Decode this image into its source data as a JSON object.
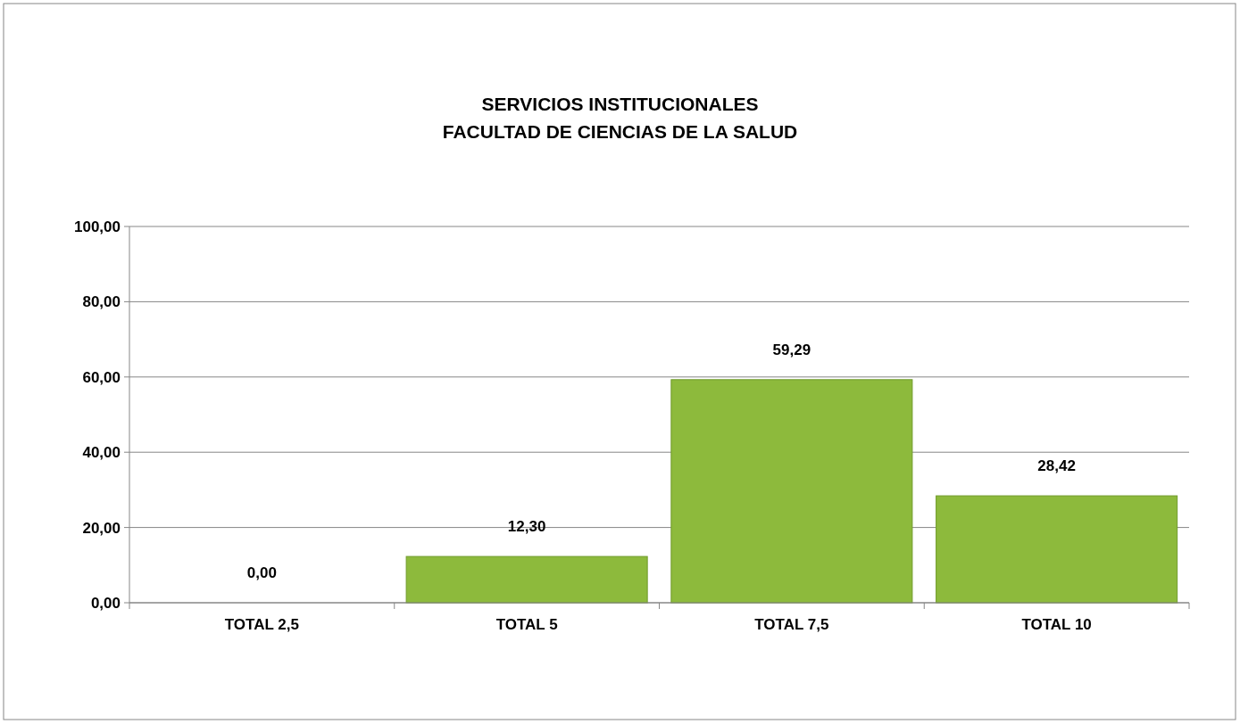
{
  "chart_data": {
    "type": "bar",
    "title": "SERVICIOS INSTITUCIONALES\nFACULTAD DE CIENCIAS DE LA SALUD",
    "categories": [
      "TOTAL 2,5",
      "TOTAL 5",
      "TOTAL 7,5",
      "TOTAL 10"
    ],
    "values": [
      0,
      12.3,
      59.29,
      28.42
    ],
    "color": "#8dba3c",
    "value_labels": [
      "0,00",
      "12,30",
      "59,29",
      "28,42"
    ],
    "ylim": [
      0,
      100
    ],
    "yticks": [
      {
        "value": 0,
        "label": "0,00"
      },
      {
        "value": 20,
        "label": "20,00"
      },
      {
        "value": 40,
        "label": "40,00"
      },
      {
        "value": 60,
        "label": "60,00"
      },
      {
        "value": 80,
        "label": "80,00"
      },
      {
        "value": 100,
        "label": "100,00"
      }
    ],
    "grid": "y"
  }
}
